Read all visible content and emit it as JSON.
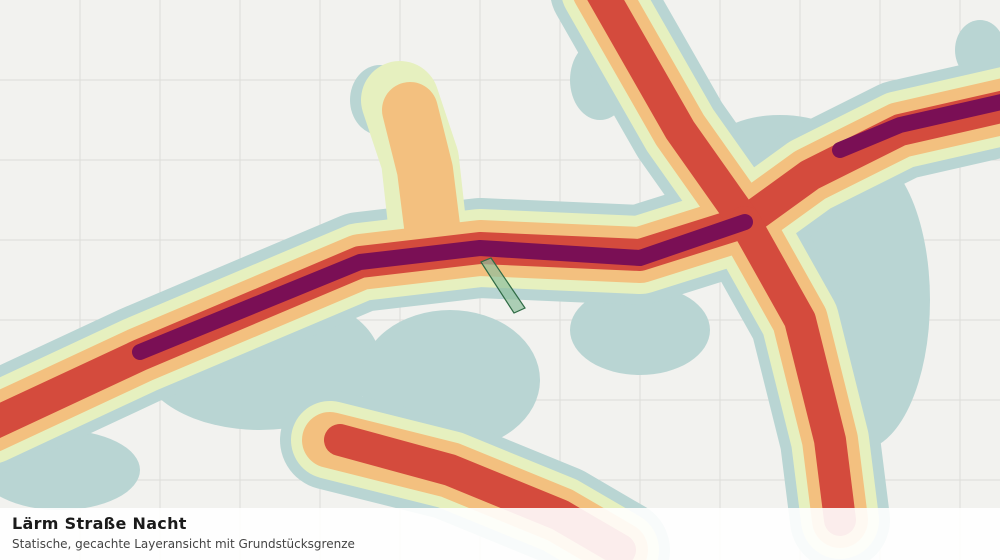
{
  "panel": {
    "title": "Lärm Straße Nacht",
    "subtitle": "Statische, gecachte Layeransicht mit Grundstücksgrenze"
  }
}
